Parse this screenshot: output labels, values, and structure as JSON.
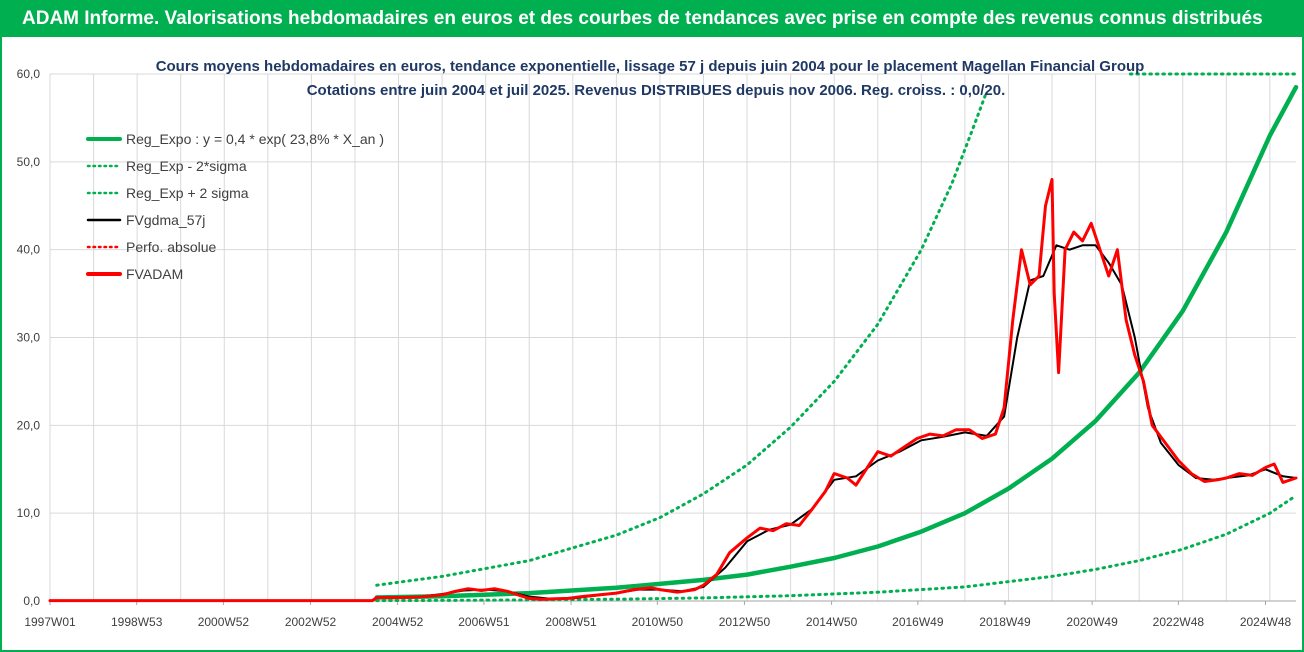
{
  "banner": {
    "title": "ADAM Informe. Valorisations hebdomadaires en euros et des courbes de tendances avec prise en compte des revenus connus distribués"
  },
  "colors": {
    "banner": "#00b050",
    "reg_expo": "#00b050",
    "fvgdma": "#000000",
    "fvadam": "#ff0000",
    "perfo": "#ff0000",
    "grid": "#d9d9d9"
  },
  "chart_data": {
    "type": "line",
    "title_line1": "Cours moyens hebdomadaires en euros, tendance exponentielle, lissage 57 j depuis juin 2004 pour le placement Magellan Financial Group",
    "title_line2": "Cotations entre juin 2004 et juil 2025.  Revenus DISTRIBUES depuis nov 2006.  Reg. croiss. : 0,0/20.",
    "ylim": [
      0,
      60
    ],
    "yticks": [
      "0,0",
      "10,0",
      "20,0",
      "30,0",
      "40,0",
      "50,0",
      "60,0"
    ],
    "xlim": [
      1997.0,
      2025.6
    ],
    "xticks": [
      {
        "label": "1997W01",
        "x": 1997.0
      },
      {
        "label": "1998W53",
        "x": 1998.99
      },
      {
        "label": "2000W52",
        "x": 2000.98
      },
      {
        "label": "2002W52",
        "x": 2002.98
      },
      {
        "label": "2004W52",
        "x": 2004.98
      },
      {
        "label": "2006W51",
        "x": 2006.96
      },
      {
        "label": "2008W51",
        "x": 2008.96
      },
      {
        "label": "2010W50",
        "x": 2010.94
      },
      {
        "label": "2012W50",
        "x": 2012.94
      },
      {
        "label": "2014W50",
        "x": 2014.94
      },
      {
        "label": "2016W49",
        "x": 2016.92
      },
      {
        "label": "2018W49",
        "x": 2018.92
      },
      {
        "label": "2020W49",
        "x": 2020.92
      },
      {
        "label": "2022W48",
        "x": 2022.9
      },
      {
        "label": "2024W48",
        "x": 2024.9
      }
    ],
    "legend": [
      {
        "name": "Reg_Expo : y = 0,4 * exp( 23,8% *  X_an )",
        "style": "solid-thick",
        "color": "#00b050"
      },
      {
        "name": "Reg_Exp - 2*sigma",
        "style": "dotted",
        "color": "#00b050"
      },
      {
        "name": "Reg_Exp + 2 sigma",
        "style": "dotted",
        "color": "#00b050"
      },
      {
        "name": "FVgdma_57j",
        "style": "solid",
        "color": "#000000"
      },
      {
        "name": "Perfo. absolue",
        "style": "dotted",
        "color": "#ff0000"
      },
      {
        "name": "FVADAM",
        "style": "solid-thick",
        "color": "#ff0000"
      }
    ],
    "series": [
      {
        "key": "reg_expo",
        "x": [
          2004.5,
          2006.0,
          2008.0,
          2010.0,
          2012.0,
          2013.0,
          2014.0,
          2015.0,
          2016.0,
          2017.0,
          2018.0,
          2019.0,
          2020.0,
          2021.0,
          2022.0,
          2023.0,
          2024.0,
          2025.0,
          2025.6
        ],
        "y": [
          0.4,
          0.55,
          0.9,
          1.5,
          2.4,
          3.0,
          3.9,
          4.9,
          6.2,
          7.9,
          10.0,
          12.8,
          16.2,
          20.5,
          26.0,
          33.0,
          42.0,
          53.0,
          58.5
        ]
      },
      {
        "key": "reg_minus",
        "x": [
          2004.5,
          2006.0,
          2008.0,
          2010.0,
          2012.0,
          2014.0,
          2016.0,
          2018.0,
          2020.0,
          2021.0,
          2022.0,
          2023.0,
          2024.0,
          2025.0,
          2025.6
        ],
        "y": [
          0.05,
          0.07,
          0.12,
          0.2,
          0.35,
          0.6,
          1.0,
          1.6,
          2.8,
          3.6,
          4.6,
          5.9,
          7.6,
          10.0,
          12.0
        ]
      },
      {
        "key": "reg_plus",
        "x": [
          2004.5,
          2006.0,
          2008.0,
          2010.0,
          2011.0,
          2012.0,
          2013.0,
          2014.0,
          2015.0,
          2016.0,
          2017.0,
          2017.7,
          2018.2,
          2018.5
        ],
        "y": [
          1.8,
          2.8,
          4.6,
          7.5,
          9.5,
          12.2,
          15.5,
          19.8,
          25.0,
          31.5,
          40.0,
          47.5,
          54.0,
          58.0
        ]
      },
      {
        "key": "reg_plus_cap",
        "x": [
          2021.8,
          2025.6
        ],
        "y": [
          60.0,
          60.0
        ]
      },
      {
        "key": "fvadam",
        "x": [
          1997.0,
          2004.4,
          2004.5,
          2005.0,
          2005.5,
          2006.0,
          2006.3,
          2006.6,
          2006.9,
          2007.2,
          2007.5,
          2007.8,
          2008.0,
          2008.3,
          2008.6,
          2008.9,
          2009.2,
          2009.6,
          2010.0,
          2010.4,
          2010.8,
          2011.0,
          2011.4,
          2011.8,
          2012.0,
          2012.3,
          2012.6,
          2013.0,
          2013.3,
          2013.6,
          2013.9,
          2014.2,
          2014.5,
          2014.8,
          2015.0,
          2015.3,
          2015.5,
          2015.8,
          2016.0,
          2016.3,
          2016.6,
          2016.9,
          2017.2,
          2017.5,
          2017.8,
          2018.1,
          2018.4,
          2018.7,
          2018.9,
          2019.1,
          2019.3,
          2019.5,
          2019.7,
          2019.85,
          2020.0,
          2020.05,
          2020.15,
          2020.3,
          2020.5,
          2020.7,
          2020.9,
          2021.1,
          2021.3,
          2021.5,
          2021.7,
          2021.9,
          2022.1,
          2022.3,
          2022.6,
          2022.9,
          2023.2,
          2023.5,
          2023.8,
          2024.0,
          2024.3,
          2024.6,
          2024.9,
          2025.1,
          2025.3,
          2025.6
        ],
        "y": [
          0.05,
          0.05,
          0.4,
          0.4,
          0.45,
          0.7,
          1.1,
          1.4,
          1.2,
          1.4,
          1.1,
          0.6,
          0.3,
          0.2,
          0.25,
          0.3,
          0.5,
          0.7,
          0.9,
          1.3,
          1.5,
          1.3,
          1.0,
          1.3,
          1.8,
          3.0,
          5.5,
          7.2,
          8.3,
          8.0,
          8.8,
          8.6,
          10.5,
          12.5,
          14.5,
          14.0,
          13.2,
          15.5,
          17.0,
          16.5,
          17.5,
          18.5,
          19.0,
          18.8,
          19.5,
          19.5,
          18.5,
          19.0,
          22.0,
          32.0,
          40.0,
          36.0,
          37.0,
          45.0,
          48.0,
          35.0,
          26.0,
          40.0,
          42.0,
          41.0,
          43.0,
          40.0,
          37.0,
          40.0,
          32.0,
          28.0,
          25.0,
          20.0,
          18.0,
          16.0,
          14.5,
          13.6,
          13.8,
          14.0,
          14.5,
          14.3,
          15.2,
          15.6,
          13.5,
          14.0
        ]
      },
      {
        "key": "fvgdma",
        "x": [
          2004.5,
          2005.0,
          2005.5,
          2006.0,
          2006.5,
          2007.0,
          2007.5,
          2008.0,
          2008.5,
          2009.0,
          2009.5,
          2010.0,
          2010.5,
          2011.0,
          2011.5,
          2012.0,
          2012.5,
          2013.0,
          2013.5,
          2014.0,
          2014.5,
          2015.0,
          2015.5,
          2016.0,
          2016.5,
          2017.0,
          2017.5,
          2018.0,
          2018.5,
          2018.9,
          2019.2,
          2019.5,
          2019.8,
          2020.1,
          2020.4,
          2020.7,
          2021.0,
          2021.3,
          2021.6,
          2021.9,
          2022.2,
          2022.5,
          2022.9,
          2023.3,
          2023.7,
          2024.0,
          2024.5,
          2024.9,
          2025.3,
          2025.6
        ],
        "y": [
          0.4,
          0.4,
          0.5,
          0.8,
          1.2,
          1.3,
          1.1,
          0.5,
          0.25,
          0.3,
          0.6,
          0.9,
          1.3,
          1.3,
          1.1,
          1.6,
          3.8,
          6.8,
          8.1,
          8.7,
          10.5,
          13.8,
          14.2,
          16.0,
          17.0,
          18.3,
          18.7,
          19.2,
          18.8,
          21.0,
          30.0,
          36.5,
          37.0,
          40.5,
          40.0,
          40.5,
          40.5,
          38.5,
          36.0,
          30.0,
          22.0,
          18.0,
          15.5,
          14.0,
          13.8,
          14.0,
          14.3,
          15.0,
          14.2,
          14.0
        ]
      }
    ]
  }
}
